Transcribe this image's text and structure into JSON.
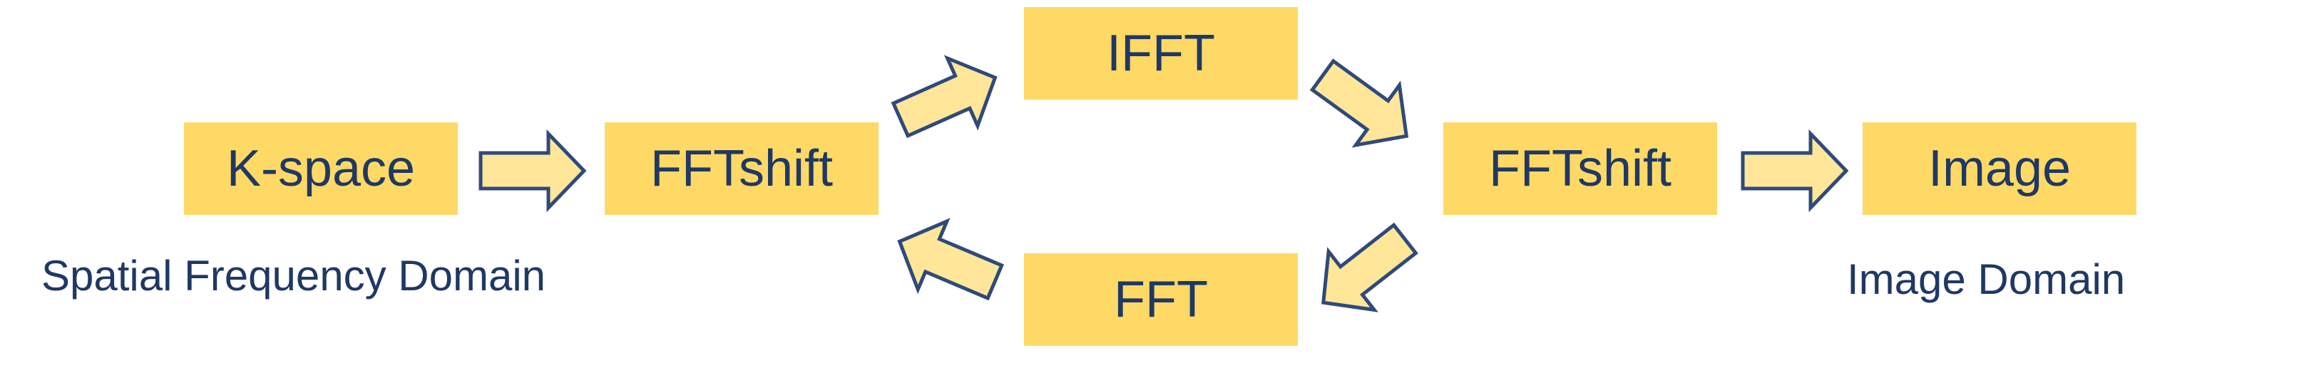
{
  "nodes": {
    "kspace": "K-space",
    "fftshift_left": "FFTshift",
    "ifft": "IFFT",
    "fft": "FFT",
    "fftshift_right": "FFTshift",
    "image": "Image"
  },
  "captions": {
    "left": "Spatial Frequency Domain",
    "right": "Image Domain"
  },
  "colors": {
    "box_fill": "#FFD966",
    "arrow_fill": "#FFE699",
    "arrow_stroke": "#2F4A7A",
    "text": "#1F3864"
  }
}
